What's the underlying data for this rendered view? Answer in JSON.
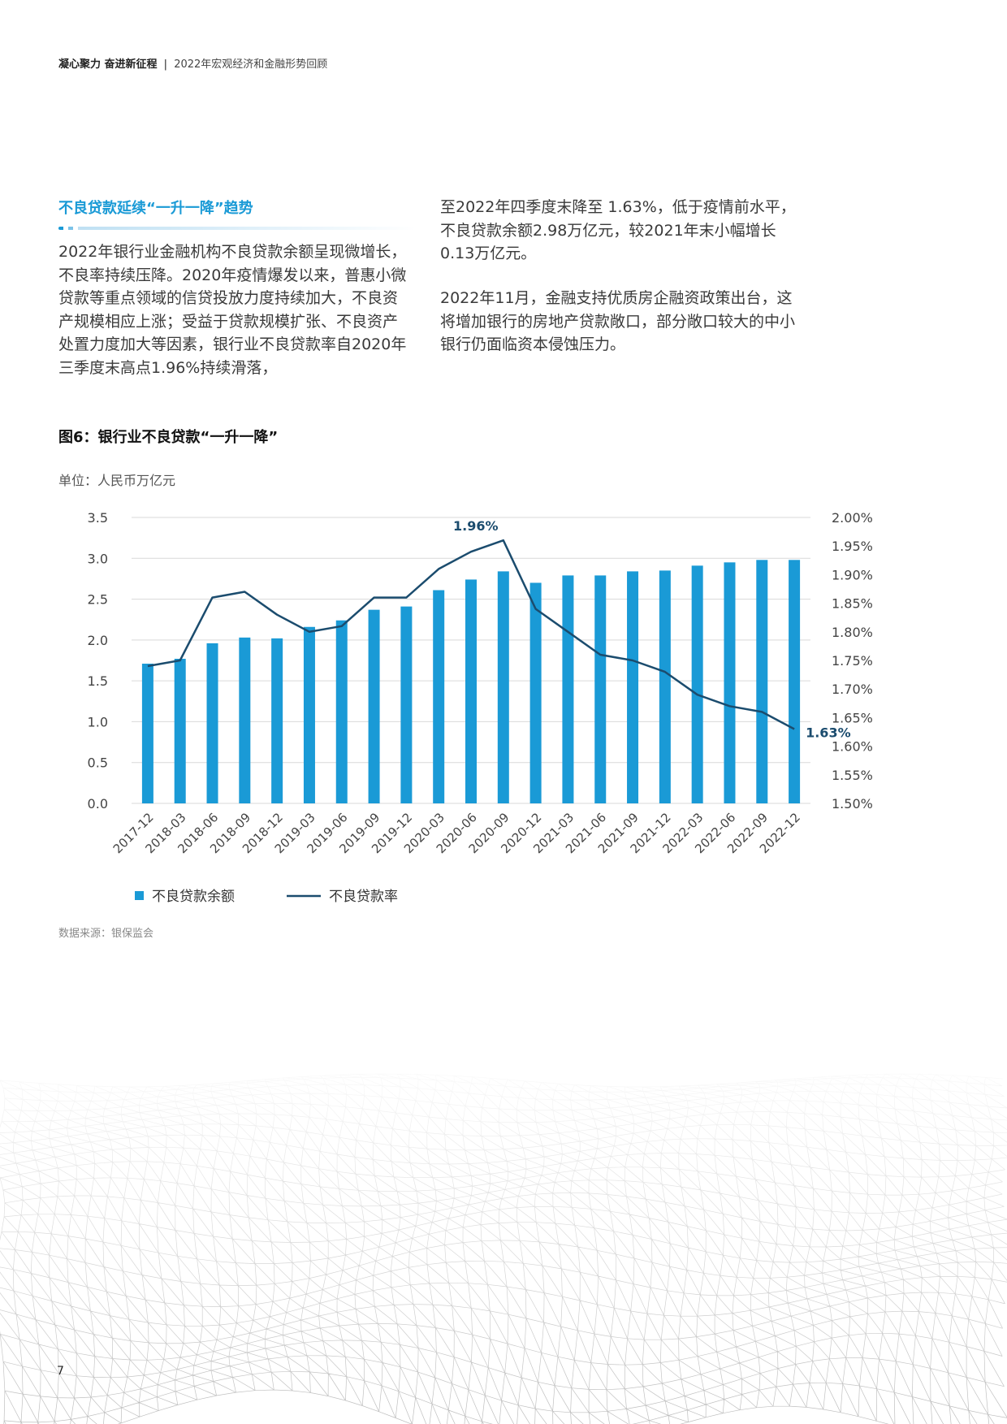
{
  "header": {
    "brand": "凝心聚力 奋进新征程",
    "separator": "|",
    "subtitle": "2022年宏观经济和金融形势回顾"
  },
  "section": {
    "title": "不良贷款延续“一升一降”趋势",
    "paragraph_left": "2022年银行业金融机构不良贷款余额呈现微增长，不良率持续压降。2020年疫情爆发以来，普惠小微贷款等重点领域的信贷投放力度持续加大，不良资产规模相应上涨；受益于贷款规模扩张、不良资产处置力度加大等因素，银行业不良贷款率自2020年三季度末高点1.96%持续滑落，",
    "paragraph_right_1": "至2022年四季度末降至 1.63%，低于疫情前水平，不良贷款余额2.98万亿元，较2021年末小幅增长0.13万亿元。",
    "paragraph_right_2": "2022年11月，金融支持优质房企融资政策出台，这将增加银行的房地产贷款敞口，部分敞口较大的中小银行仍面临资本侵蚀压力。"
  },
  "figure": {
    "title": "图6：银行业不良贷款“一升一降”",
    "unit": "单位：人民币万亿元",
    "source": "数据来源：银保监会"
  },
  "chart_data": {
    "type": "bar+line",
    "categories": [
      "2017-12",
      "2018-03",
      "2018-06",
      "2018-09",
      "2018-12",
      "2019-03",
      "2019-06",
      "2019-09",
      "2019-12",
      "2020-03",
      "2020-06",
      "2020-09",
      "2020-12",
      "2021-03",
      "2021-06",
      "2021-09",
      "2021-12",
      "2022-03",
      "2022-06",
      "2022-09",
      "2022-12"
    ],
    "series": [
      {
        "name": "不良贷款余额",
        "type": "bar",
        "axis": "left",
        "color": "#1a9ad6",
        "values": [
          1.71,
          1.77,
          1.96,
          2.03,
          2.02,
          2.16,
          2.24,
          2.37,
          2.41,
          2.61,
          2.74,
          2.84,
          2.7,
          2.79,
          2.79,
          2.84,
          2.85,
          2.91,
          2.95,
          2.98,
          2.98
        ]
      },
      {
        "name": "不良贷款率",
        "type": "line",
        "axis": "right",
        "color": "#1b4c6e",
        "values": [
          1.74,
          1.75,
          1.86,
          1.87,
          1.83,
          1.8,
          1.81,
          1.86,
          1.86,
          1.91,
          1.94,
          1.96,
          1.84,
          1.8,
          1.76,
          1.75,
          1.73,
          1.69,
          1.67,
          1.66,
          1.63
        ]
      }
    ],
    "left_axis": {
      "ylim": [
        0,
        3.5
      ],
      "ticks": [
        "0.0",
        "0.5",
        "1.0",
        "1.5",
        "2.0",
        "2.5",
        "3.0",
        "3.5"
      ]
    },
    "right_axis": {
      "ylim": [
        1.5,
        2.0
      ],
      "ticks": [
        "1.50%",
        "1.55%",
        "1.60%",
        "1.65%",
        "1.70%",
        "1.75%",
        "1.80%",
        "1.85%",
        "1.90%",
        "1.95%",
        "2.00%"
      ]
    },
    "annotations": [
      {
        "text": "1.96%",
        "category": "2020-09"
      },
      {
        "text": "1.63%",
        "category": "2022-12"
      }
    ],
    "legend_position": "bottom-left",
    "grid": true
  },
  "page": {
    "number": "7"
  }
}
